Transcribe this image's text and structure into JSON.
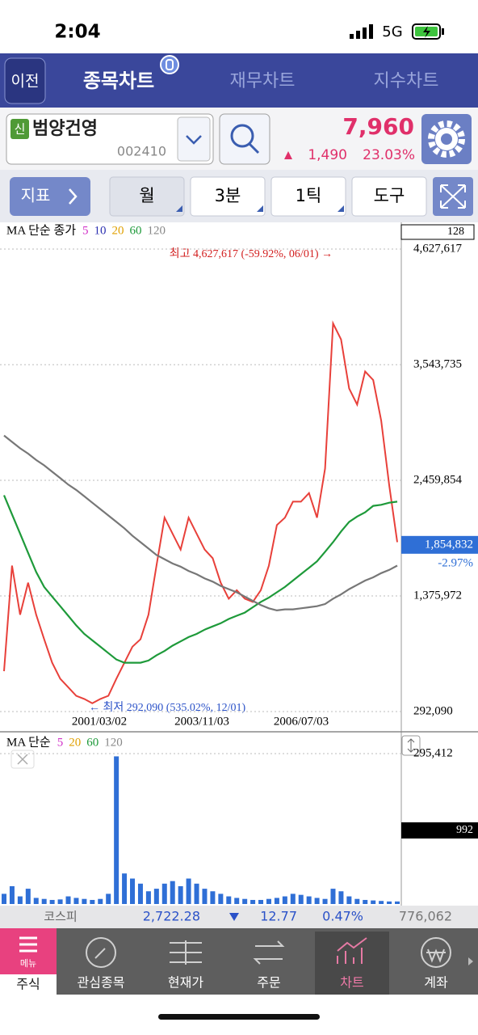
{
  "status": {
    "time": "2:04",
    "network": "5G"
  },
  "header": {
    "back": "이전",
    "tabs": [
      "종목차트",
      "재무차트",
      "지수차트"
    ]
  },
  "stock": {
    "badge": "신",
    "name": "범양건영",
    "code": "002410",
    "price": "7,960",
    "change": "1,490",
    "change_rate": "23.03%"
  },
  "toolbar": {
    "indicator": "지표",
    "period": "월",
    "interval": "3분",
    "tick": "1틱",
    "tools": "도구"
  },
  "chart_data": [
    {
      "type": "line",
      "legend_title": "MA 단순 종가",
      "ma_periods": [
        {
          "label": "5",
          "color": "#d02fc8"
        },
        {
          "label": "10",
          "color": "#2b2fb0"
        },
        {
          "label": "20",
          "color": "#e0a000"
        },
        {
          "label": "60",
          "color": "#1e9a3a"
        },
        {
          "label": "120",
          "color": "#888888"
        }
      ],
      "box_label": "128",
      "x_labels": [
        "2001/03/02",
        "2003/11/03",
        "2006/07/03"
      ],
      "high_note": "최고 4,627,617 (-59.92%, 06/01) →",
      "low_note": "← 최저 292,090 (535.02%, 12/01)",
      "ylim": [
        292090,
        4627617
      ],
      "yticks": [
        {
          "value": 4627617,
          "label": "4,627,617"
        },
        {
          "value": 3543735,
          "label": "3,543,735"
        },
        {
          "value": 2459854,
          "label": "2,459,854"
        },
        {
          "value": 1375972,
          "label": "1,375,972"
        },
        {
          "value": 292090,
          "label": "292,090"
        }
      ],
      "current": {
        "value": 1854832,
        "label": "1,854,832",
        "change": "-2.97%"
      },
      "series": [
        {
          "color": "#e8403a",
          "values": [
            670000,
            1660000,
            1200000,
            1500000,
            1200000,
            970000,
            750000,
            600000,
            520000,
            440000,
            410000,
            370000,
            410000,
            440000,
            600000,
            750000,
            900000,
            970000,
            1200000,
            1660000,
            2110000,
            1960000,
            1810000,
            2110000,
            1960000,
            1810000,
            1730000,
            1500000,
            1350000,
            1430000,
            1350000,
            1320000,
            1430000,
            1660000,
            2040000,
            2110000,
            2260000,
            2260000,
            2340000,
            2110000,
            2570000,
            3930000,
            3780000,
            3320000,
            3170000,
            3480000,
            3400000,
            3020000,
            2410000,
            1880000
          ]
        },
        {
          "color": "#1e9a3a",
          "values": [
            2320000,
            2140000,
            1960000,
            1780000,
            1600000,
            1460000,
            1370000,
            1280000,
            1190000,
            1100000,
            1020000,
            960000,
            900000,
            840000,
            780000,
            750000,
            750000,
            750000,
            770000,
            820000,
            860000,
            910000,
            950000,
            990000,
            1020000,
            1060000,
            1090000,
            1120000,
            1160000,
            1190000,
            1220000,
            1270000,
            1320000,
            1360000,
            1410000,
            1460000,
            1520000,
            1580000,
            1640000,
            1700000,
            1790000,
            1880000,
            1980000,
            2070000,
            2120000,
            2160000,
            2220000,
            2230000,
            2250000,
            2260000
          ]
        },
        {
          "color": "#777777",
          "values": [
            2880000,
            2820000,
            2760000,
            2710000,
            2650000,
            2600000,
            2540000,
            2480000,
            2420000,
            2370000,
            2310000,
            2250000,
            2190000,
            2130000,
            2070000,
            2010000,
            1940000,
            1880000,
            1820000,
            1760000,
            1720000,
            1680000,
            1650000,
            1610000,
            1580000,
            1540000,
            1510000,
            1470000,
            1440000,
            1410000,
            1370000,
            1330000,
            1290000,
            1260000,
            1240000,
            1250000,
            1250000,
            1260000,
            1270000,
            1280000,
            1300000,
            1350000,
            1390000,
            1440000,
            1480000,
            1520000,
            1550000,
            1590000,
            1620000,
            1660000
          ]
        }
      ]
    },
    {
      "type": "bar",
      "legend_title": "MA 단순",
      "ma_periods": [
        {
          "label": "5",
          "color": "#d02fc8"
        },
        {
          "label": "20",
          "color": "#e0a000"
        },
        {
          "label": "60",
          "color": "#1e9a3a"
        },
        {
          "label": "120",
          "color": "#888888"
        }
      ],
      "ylim": [
        0,
        295412
      ],
      "yticks": [
        {
          "value": 295412,
          "label": "295,412"
        }
      ],
      "last_label": "992",
      "color": "#2f6fd6",
      "values": [
        20000,
        35000,
        15000,
        30000,
        12000,
        10000,
        8000,
        9000,
        15000,
        12000,
        10000,
        8000,
        10000,
        20000,
        290000,
        60000,
        50000,
        40000,
        25000,
        30000,
        40000,
        45000,
        35000,
        50000,
        40000,
        30000,
        25000,
        20000,
        15000,
        12000,
        10000,
        8000,
        8000,
        10000,
        12000,
        15000,
        20000,
        18000,
        15000,
        12000,
        10000,
        30000,
        25000,
        15000,
        10000,
        8000,
        7000,
        6000,
        5000,
        5000
      ]
    }
  ],
  "index_bar": {
    "name": "코스피",
    "value": "2,722.28",
    "change": "12.77",
    "rate": "0.47%",
    "volume": "776,062"
  },
  "nav": {
    "menu": "메뉴",
    "items": [
      "주식",
      "관심종목",
      "현재가",
      "주문",
      "차트",
      "계좌"
    ]
  }
}
